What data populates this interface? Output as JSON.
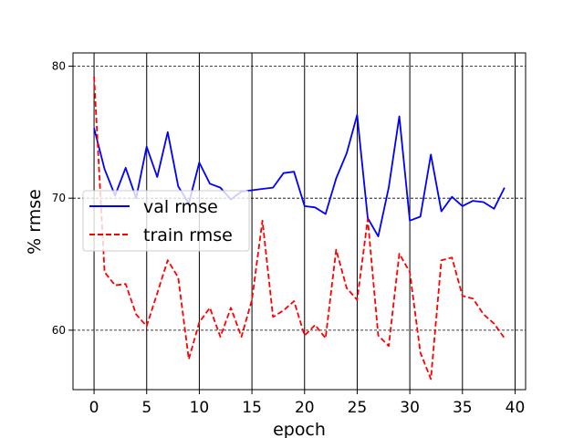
{
  "chart_data": {
    "type": "line",
    "xlabel": "epoch",
    "ylabel": "% rmse",
    "xlim": [
      -2,
      41
    ],
    "ylim": [
      55.5,
      81
    ],
    "xticks": [
      0,
      5,
      10,
      15,
      20,
      25,
      30,
      35,
      40
    ],
    "yticks": [
      60,
      70,
      80
    ],
    "legend_position": "center-left",
    "grid": {
      "x": "solid black lines at each x tick except 0 and 40",
      "y": "dashed black lines at y ticks"
    },
    "x": [
      0,
      1,
      2,
      3,
      4,
      5,
      6,
      7,
      8,
      9,
      10,
      11,
      12,
      13,
      14,
      15,
      16,
      17,
      18,
      19,
      20,
      21,
      22,
      23,
      24,
      25,
      26,
      27,
      28,
      29,
      30,
      31,
      32,
      33,
      34,
      35,
      36,
      37,
      38,
      39
    ],
    "series": [
      {
        "name": "val rmse",
        "color": "#0000ff",
        "dash": "solid",
        "values": [
          75.3,
          72.2,
          70.2,
          72.3,
          70.0,
          73.9,
          71.6,
          75.0,
          70.9,
          69.6,
          72.7,
          71.1,
          70.8,
          69.9,
          70.5,
          70.6,
          70.7,
          70.8,
          71.9,
          72.0,
          69.4,
          69.3,
          68.8,
          71.5,
          73.4,
          76.3,
          68.5,
          67.1,
          70.8,
          76.2,
          68.3,
          68.6,
          73.3,
          69.0,
          70.1,
          69.4,
          69.8,
          69.7,
          69.2,
          70.8
        ]
      },
      {
        "name": "train rmse",
        "color": "#ff0000",
        "dash": "dashed",
        "values": [
          79.2,
          64.4,
          63.4,
          63.5,
          61.2,
          60.3,
          62.8,
          65.3,
          64.0,
          57.8,
          60.6,
          61.7,
          59.5,
          61.7,
          59.5,
          62.3,
          68.3,
          61.0,
          61.5,
          62.2,
          59.6,
          60.4,
          59.4,
          66.1,
          63.2,
          62.3,
          68.4,
          59.6,
          58.8,
          65.8,
          64.4,
          58.3,
          56.3,
          65.3,
          65.5,
          62.6,
          62.4,
          61.2,
          60.5,
          59.4
        ]
      }
    ]
  }
}
